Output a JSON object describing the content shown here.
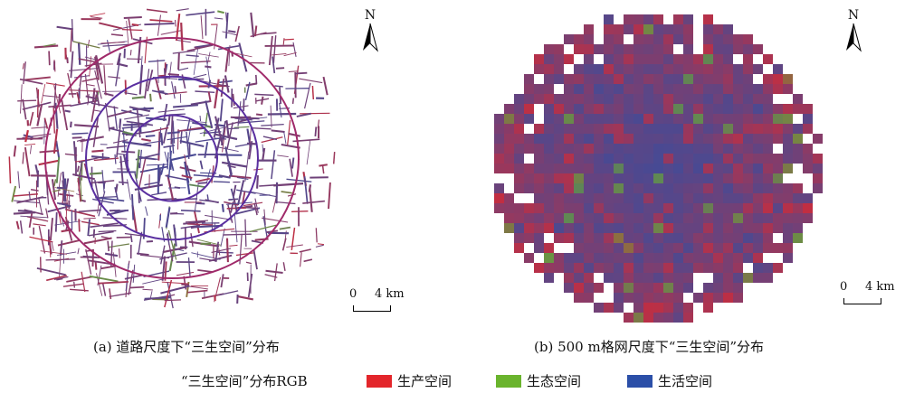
{
  "north_label": "N",
  "scale_zero": "0",
  "scale_distance": "4 km",
  "panel_a": {
    "caption": "(a) 道路尺度下“三生空间”分布"
  },
  "panel_b": {
    "caption": "(b) 500 m格网尺度下“三生空间”分布"
  },
  "legend": {
    "title": "“三生空间”分布RGB",
    "items": [
      {
        "label": "生产空间",
        "color": "#e3262b"
      },
      {
        "label": "生态空间",
        "color": "#6ab42d"
      },
      {
        "label": "生活空间",
        "color": "#2b4fa8"
      }
    ]
  }
}
